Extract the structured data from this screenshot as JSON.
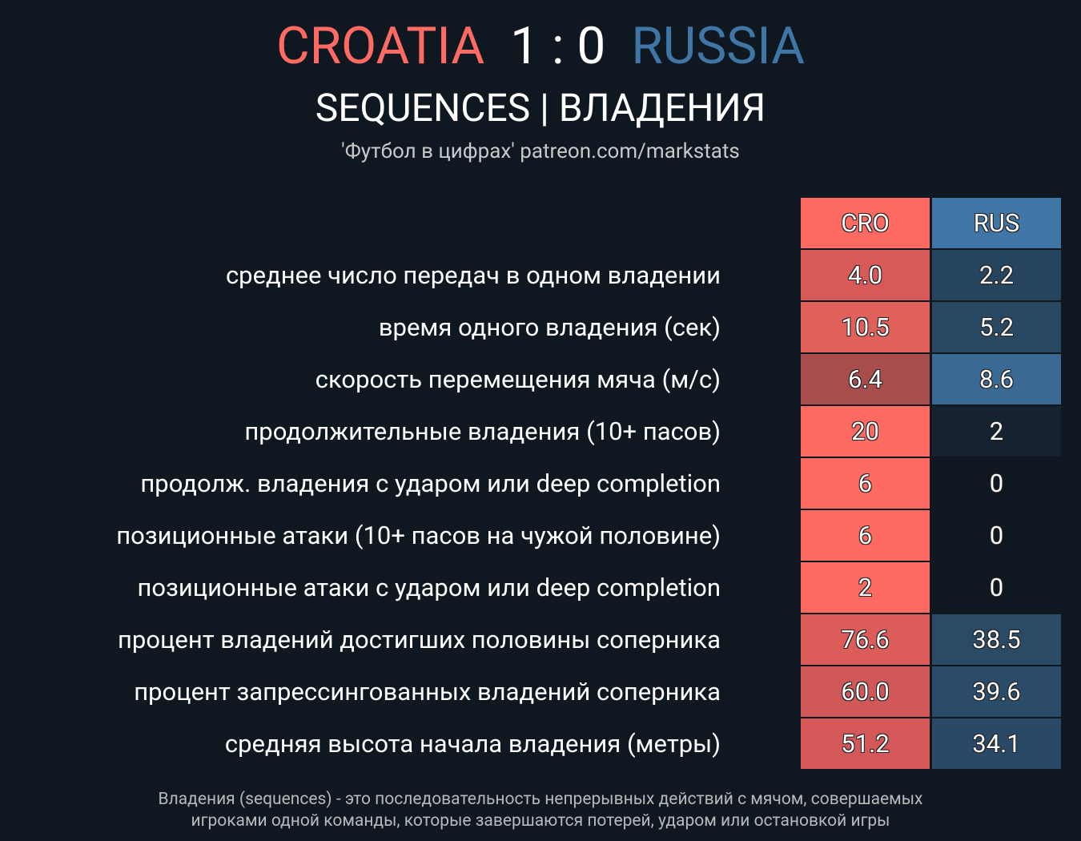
{
  "header": {
    "home": "CROATIA",
    "score": "1 : 0",
    "away": "RUSSIA",
    "home_color": "#ff6b63",
    "away_color": "#3f76a6",
    "title": "SEQUENCES | ВЛАДЕНИЯ",
    "credit": "'Футбол в цифрах' patreon.com/markstats"
  },
  "table": {
    "columns": [
      {
        "label": "CRO",
        "color": "#ff6b63"
      },
      {
        "label": "RUS",
        "color": "#3f76a6"
      }
    ],
    "rows": [
      {
        "label": "среднее число передач в одном владении",
        "cells": [
          {
            "text": "4.0",
            "color": "#d85a58"
          },
          {
            "text": "2.2",
            "color": "#27445f"
          }
        ]
      },
      {
        "label": "время одного владения (сек)",
        "cells": [
          {
            "text": "10.5",
            "color": "#e0605c"
          },
          {
            "text": "5.2",
            "color": "#294862"
          }
        ]
      },
      {
        "label": "скорость перемещения мяча (м/с)",
        "cells": [
          {
            "text": "6.4",
            "color": "#a84c4c"
          },
          {
            "text": "8.6",
            "color": "#3a6a94"
          }
        ]
      },
      {
        "label": "продолжительные владения (10+ пасов)",
        "cells": [
          {
            "text": "20",
            "color": "#ff6b63"
          },
          {
            "text": "2",
            "color": "#16222f"
          }
        ]
      },
      {
        "label": "продолж. владения с ударом или deep completion",
        "cells": [
          {
            "text": "6",
            "color": "#ff6b63"
          },
          {
            "text": "0"
          }
        ]
      },
      {
        "label": "позиционные атаки (10+ пасов на чужой половине)",
        "cells": [
          {
            "text": "6",
            "color": "#ff6b63"
          },
          {
            "text": "0"
          }
        ]
      },
      {
        "label": "позиционные атаки с ударом или deep completion",
        "cells": [
          {
            "text": "2",
            "color": "#ff6b63"
          },
          {
            "text": "0"
          }
        ]
      },
      {
        "label": "процент владений достигших половины соперника",
        "cells": [
          {
            "text": "76.6",
            "color": "#dc5c5a"
          },
          {
            "text": "38.5",
            "color": "#2a4a66"
          }
        ]
      },
      {
        "label": "процент запрессингованных владений соперника",
        "cells": [
          {
            "text": "60.0",
            "color": "#d05858"
          },
          {
            "text": "39.6",
            "color": "#2b4c68"
          }
        ]
      },
      {
        "label": "средняя высота начала владения (метры)",
        "cells": [
          {
            "text": "51.2",
            "color": "#d45858"
          },
          {
            "text": "34.1",
            "color": "#2a4966"
          }
        ]
      }
    ]
  },
  "footer": [
    "Владения (sequences) - это последовательность непрерывных действий с мячом, совершаемых",
    "игроками одной команды, которые завершаются потерей, ударом или остановкой игры"
  ]
}
